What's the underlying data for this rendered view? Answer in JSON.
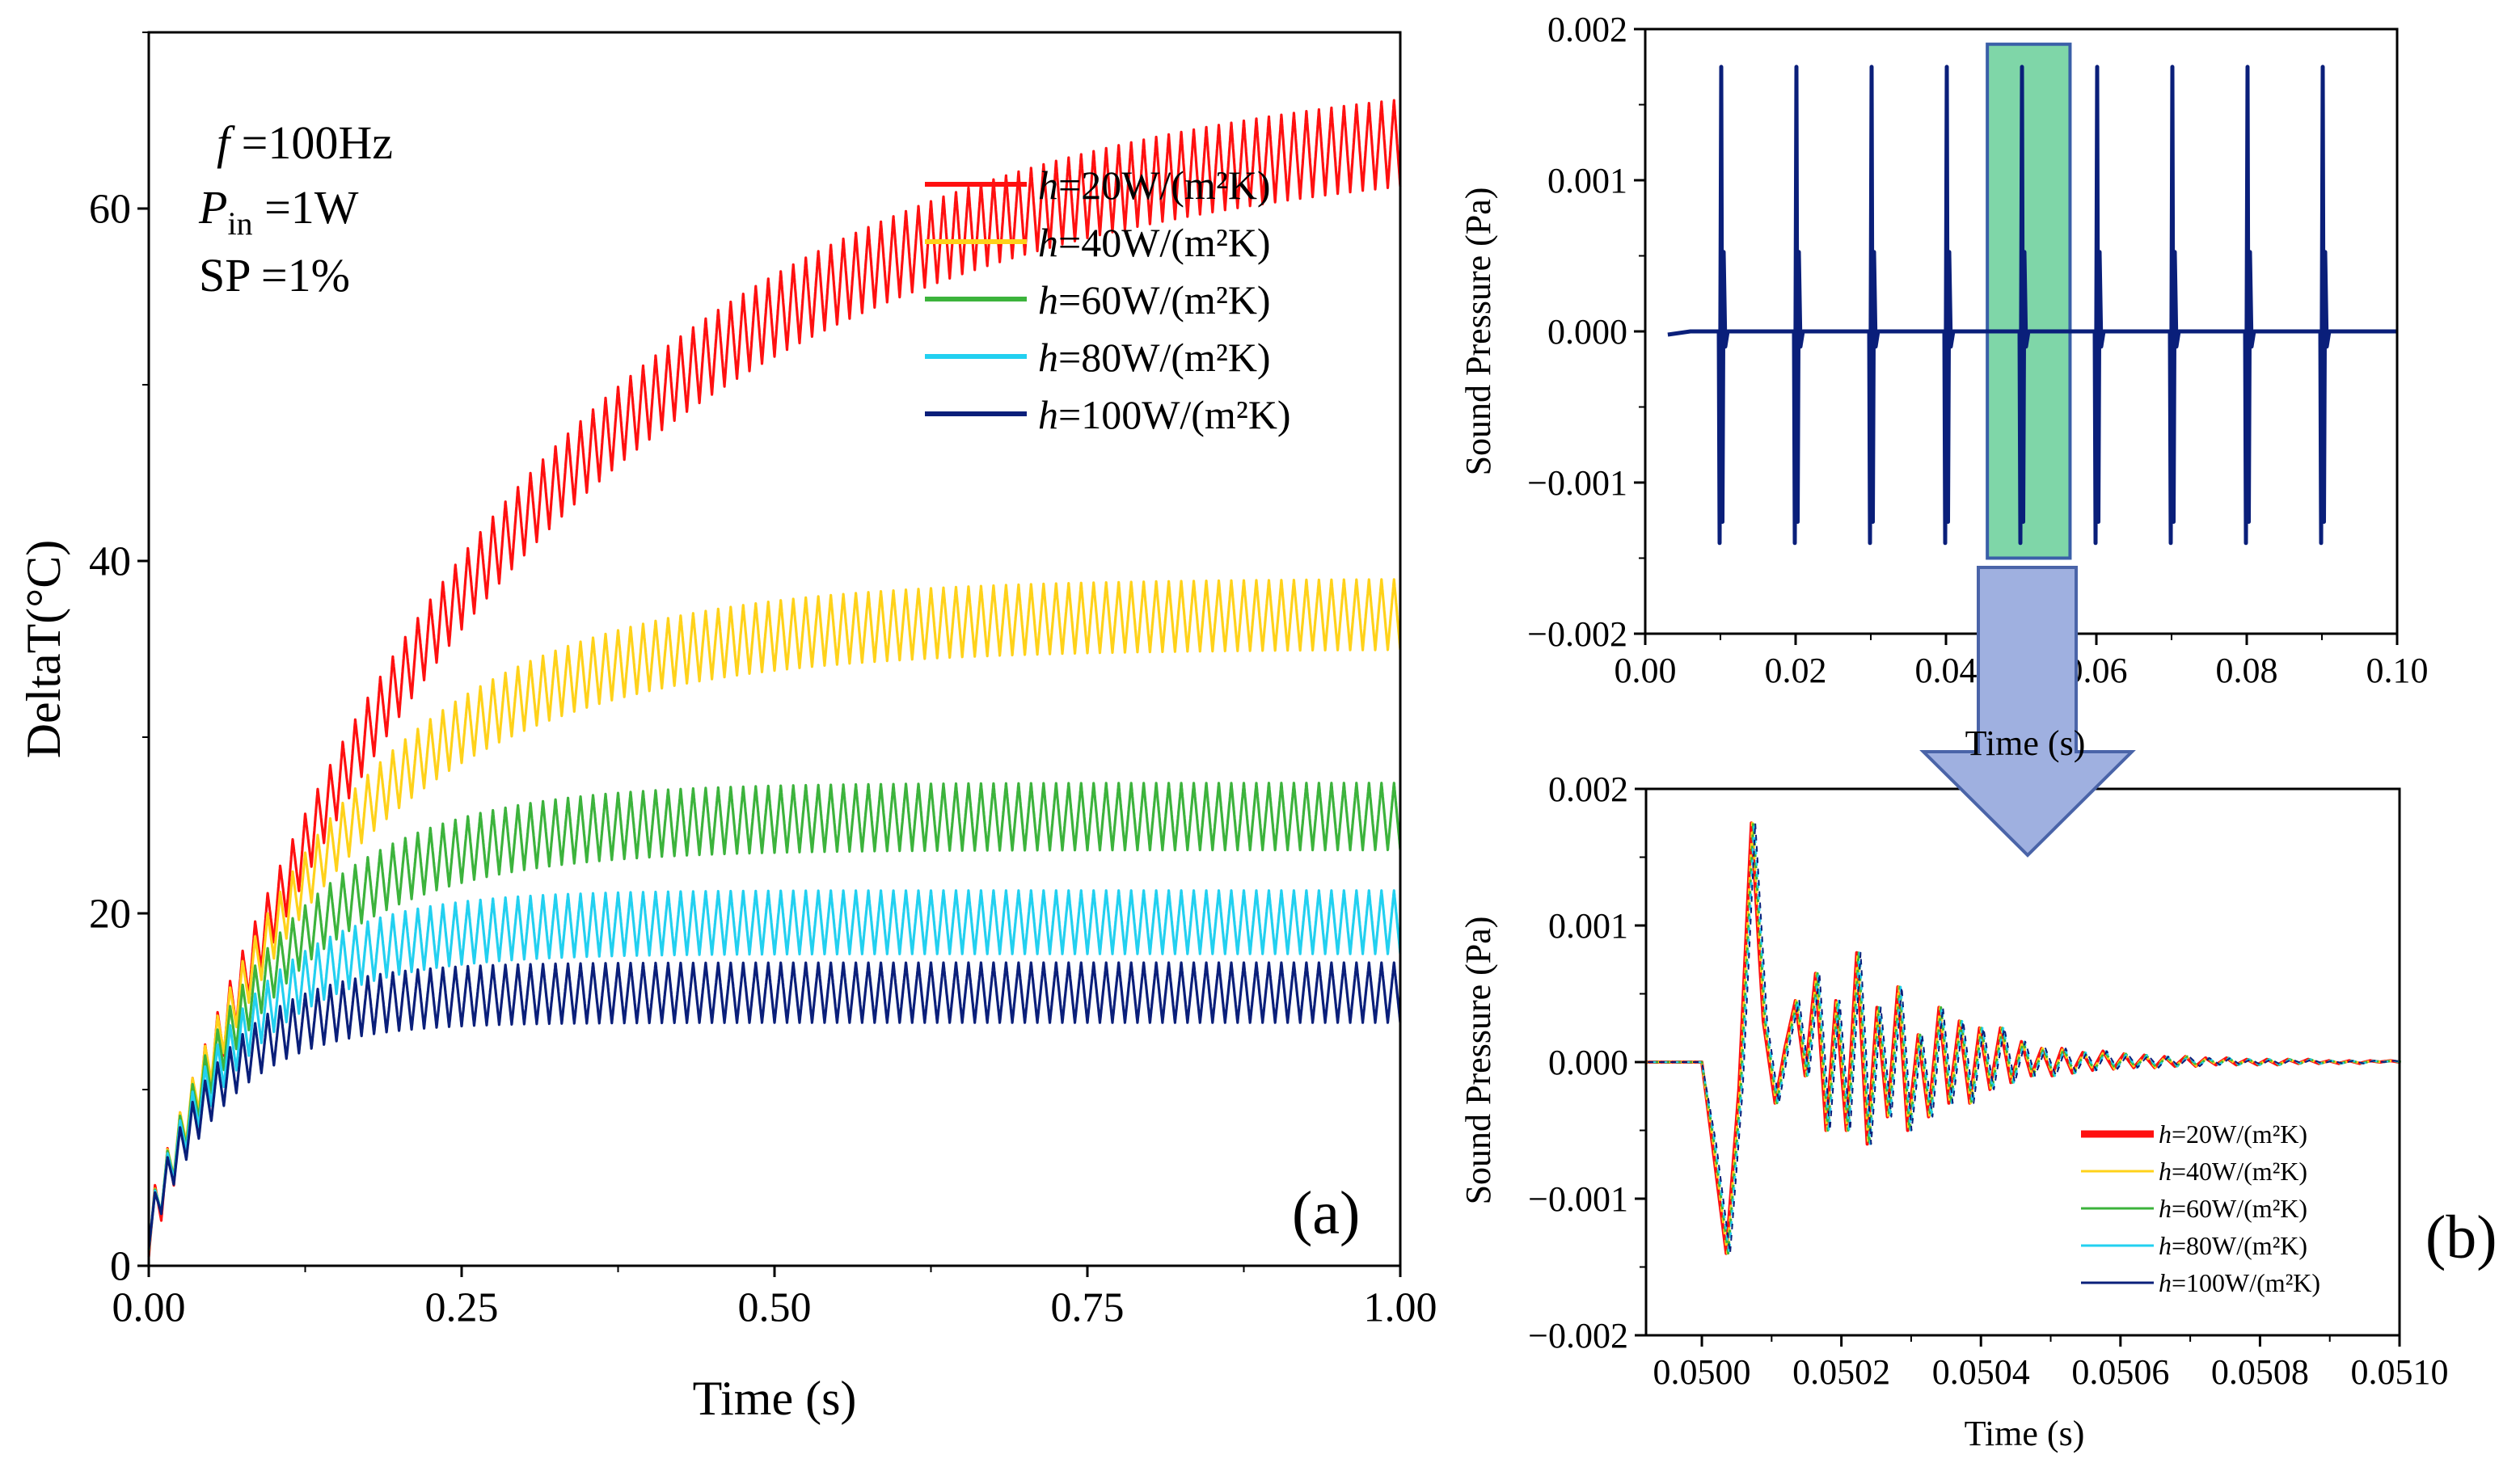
{
  "colors": {
    "red": "#ff1010",
    "yellow": "#ffd21a",
    "green": "#3cb33c",
    "cyan": "#22d0f0",
    "navy": "#0a1f7a",
    "highlight_fill": "#7fd6a8",
    "highlight_stroke": "#3a5fa8",
    "arrow_fill": "#9fb0e0",
    "arrow_stroke": "#4a64a8"
  },
  "chart_data": [
    {
      "id": "a",
      "type": "line",
      "panel_label": "(a)",
      "xlabel": "Time (s)",
      "ylabel": "DeltaT(°C)",
      "xlim": [
        0,
        1
      ],
      "ylim": [
        0,
        70
      ],
      "xticks": [
        0,
        0.25,
        0.5,
        0.75,
        1.0
      ],
      "xtick_labels": [
        "0.00",
        "0.25",
        "0.50",
        "0.75",
        "1.00"
      ],
      "yticks": [
        0,
        20,
        40,
        60
      ],
      "ytick_labels": [
        "0",
        "20",
        "40",
        "60"
      ],
      "annotations": [
        {
          "symbol": "f",
          "text": " =100Hz"
        },
        {
          "symbol": "P",
          "sub": "in",
          "text": " =1W"
        },
        {
          "symbol": "SP",
          "text": " =1%"
        }
      ],
      "legend_position": "top-right",
      "ripple_frequency_hz": 100,
      "series": [
        {
          "name": "h=20W/(m²K)",
          "prefix": "h",
          "suffix": "=20W/(m²K)",
          "steady_mean": 66,
          "ripple_amplitude": 2.5,
          "time_constant_s": 0.3,
          "color_key": "red"
        },
        {
          "name": "h=40W/(m²K)",
          "prefix": "h",
          "suffix": "=40W/(m²K)",
          "steady_mean": 37,
          "ripple_amplitude": 2.0,
          "time_constant_s": 0.15,
          "color_key": "yellow"
        },
        {
          "name": "h=60W/(m²K)",
          "prefix": "h",
          "suffix": "=60W/(m²K)",
          "steady_mean": 25.5,
          "ripple_amplitude": 1.9,
          "time_constant_s": 0.1,
          "color_key": "green"
        },
        {
          "name": "h=80W/(m²K)",
          "prefix": "h",
          "suffix": "=80W/(m²K)",
          "steady_mean": 19.5,
          "ripple_amplitude": 1.8,
          "time_constant_s": 0.075,
          "color_key": "cyan"
        },
        {
          "name": "h=100W/(m²K)",
          "prefix": "h",
          "suffix": "=100W/(m²K)",
          "steady_mean": 15.5,
          "ripple_amplitude": 1.7,
          "time_constant_s": 0.06,
          "color_key": "navy"
        }
      ]
    },
    {
      "id": "b_top",
      "type": "line",
      "xlabel": "Time (s)",
      "ylabel": "Sound Pressure (Pa)",
      "xlim": [
        0,
        0.1
      ],
      "ylim": [
        -0.002,
        0.002
      ],
      "xticks": [
        0,
        0.02,
        0.04,
        0.06,
        0.08,
        0.1
      ],
      "xtick_labels": [
        "0.00",
        "0.02",
        "0.04",
        "0.06",
        "0.08",
        "0.10"
      ],
      "yticks": [
        -0.002,
        -0.001,
        0,
        0.001,
        0.002
      ],
      "ytick_labels": [
        "−0.002",
        "−0.001",
        "0.000",
        "0.001",
        "0.002"
      ],
      "pulse_times": [
        0.01,
        0.02,
        0.03,
        0.04,
        0.05,
        0.06,
        0.07,
        0.08,
        0.09
      ],
      "pulse_peak": 0.00175,
      "pulse_trough": -0.0014,
      "highlight_range": [
        0.0455,
        0.0565
      ],
      "highlight_y_range": [
        -0.0015,
        0.0019
      ]
    },
    {
      "id": "b_bottom",
      "type": "line",
      "panel_label": "(b)",
      "xlabel": "Time (s)",
      "ylabel": "Sound Pressure (Pa)",
      "xlim": [
        0.04992,
        0.051
      ],
      "ylim": [
        -0.002,
        0.002
      ],
      "xticks": [
        0.05,
        0.0502,
        0.0504,
        0.0506,
        0.0508,
        0.051
      ],
      "xtick_labels": [
        "0.0500",
        "0.0502",
        "0.0504",
        "0.0506",
        "0.0508",
        "0.0510"
      ],
      "yticks": [
        -0.002,
        -0.001,
        0,
        0.001,
        0.002
      ],
      "ytick_labels": [
        "−0.002",
        "−0.001",
        "0.000",
        "0.001",
        "0.002"
      ],
      "flat_until": 0.05,
      "waveform_x": [
        0.04992,
        0.05,
        0.050015,
        0.050035,
        0.050053,
        0.050071,
        0.050088,
        0.050105,
        0.050119,
        0.050134,
        0.050148,
        0.050163,
        0.050178,
        0.050192,
        0.050207,
        0.050222,
        0.050237,
        0.050251,
        0.050266,
        0.050281,
        0.050295,
        0.05031,
        0.050325,
        0.05034,
        0.050354,
        0.050369,
        0.050384,
        0.050398,
        0.050413,
        0.050428,
        0.050443,
        0.050458,
        0.050472,
        0.050487,
        0.050502,
        0.050516,
        0.050531,
        0.050546,
        0.05056,
        0.050575,
        0.05059,
        0.050605,
        0.050619,
        0.050634,
        0.050649,
        0.050663,
        0.050678,
        0.050693,
        0.050708,
        0.050722,
        0.050737,
        0.050752,
        0.050766,
        0.050781,
        0.050796,
        0.05081,
        0.050825,
        0.05084,
        0.050855,
        0.050869,
        0.050884,
        0.050899,
        0.050913,
        0.050928,
        0.050943,
        0.050958,
        0.050972,
        0.050987,
        0.051
      ],
      "waveform_y": [
        0,
        0,
        -0.0006,
        -0.0014,
        -0.0002,
        0.00175,
        0.0003,
        -0.0003,
        0.0001,
        0.00045,
        -0.0001,
        0.00065,
        -0.0005,
        0.00045,
        -0.0005,
        0.0008,
        -0.0006,
        0.0004,
        -0.0004,
        0.00055,
        -0.0005,
        0.0002,
        -0.0004,
        0.0004,
        -0.0003,
        0.0003,
        -0.0003,
        0.00025,
        -0.0002,
        0.00025,
        -0.00015,
        0.00015,
        -0.0001,
        0.0001,
        -0.0001,
        0.0001,
        -8e-05,
        7e-05,
        -6e-05,
        8e-05,
        -5e-05,
        6e-05,
        -4e-05,
        5e-05,
        -4e-05,
        4e-05,
        -3e-05,
        4e-05,
        -3e-05,
        3e-05,
        -2e-05,
        3e-05,
        -2e-05,
        2e-05,
        -2e-05,
        2e-05,
        -2e-05,
        2e-05,
        -1e-05,
        2e-05,
        -1e-05,
        1e-05,
        -1e-05,
        1e-05,
        -1e-05,
        1e-05,
        0,
        1e-05,
        0
      ],
      "legend_position": "bottom-right",
      "series": [
        {
          "name": "h=20W/(m²K)",
          "prefix": "h",
          "suffix": "=20W/(m²K)",
          "color_key": "red",
          "legend_line": "thick"
        },
        {
          "name": "h=40W/(m²K)",
          "prefix": "h",
          "suffix": "=40W/(m²K)",
          "color_key": "yellow"
        },
        {
          "name": "h=60W/(m²K)",
          "prefix": "h",
          "suffix": "=60W/(m²K)",
          "color_key": "green"
        },
        {
          "name": "h=80W/(m²K)",
          "prefix": "h",
          "suffix": "=80W/(m²K)",
          "color_key": "cyan"
        },
        {
          "name": "h=100W/(m²K)",
          "prefix": "h",
          "suffix": "=100W/(m²K)",
          "color_key": "navy"
        }
      ]
    }
  ]
}
